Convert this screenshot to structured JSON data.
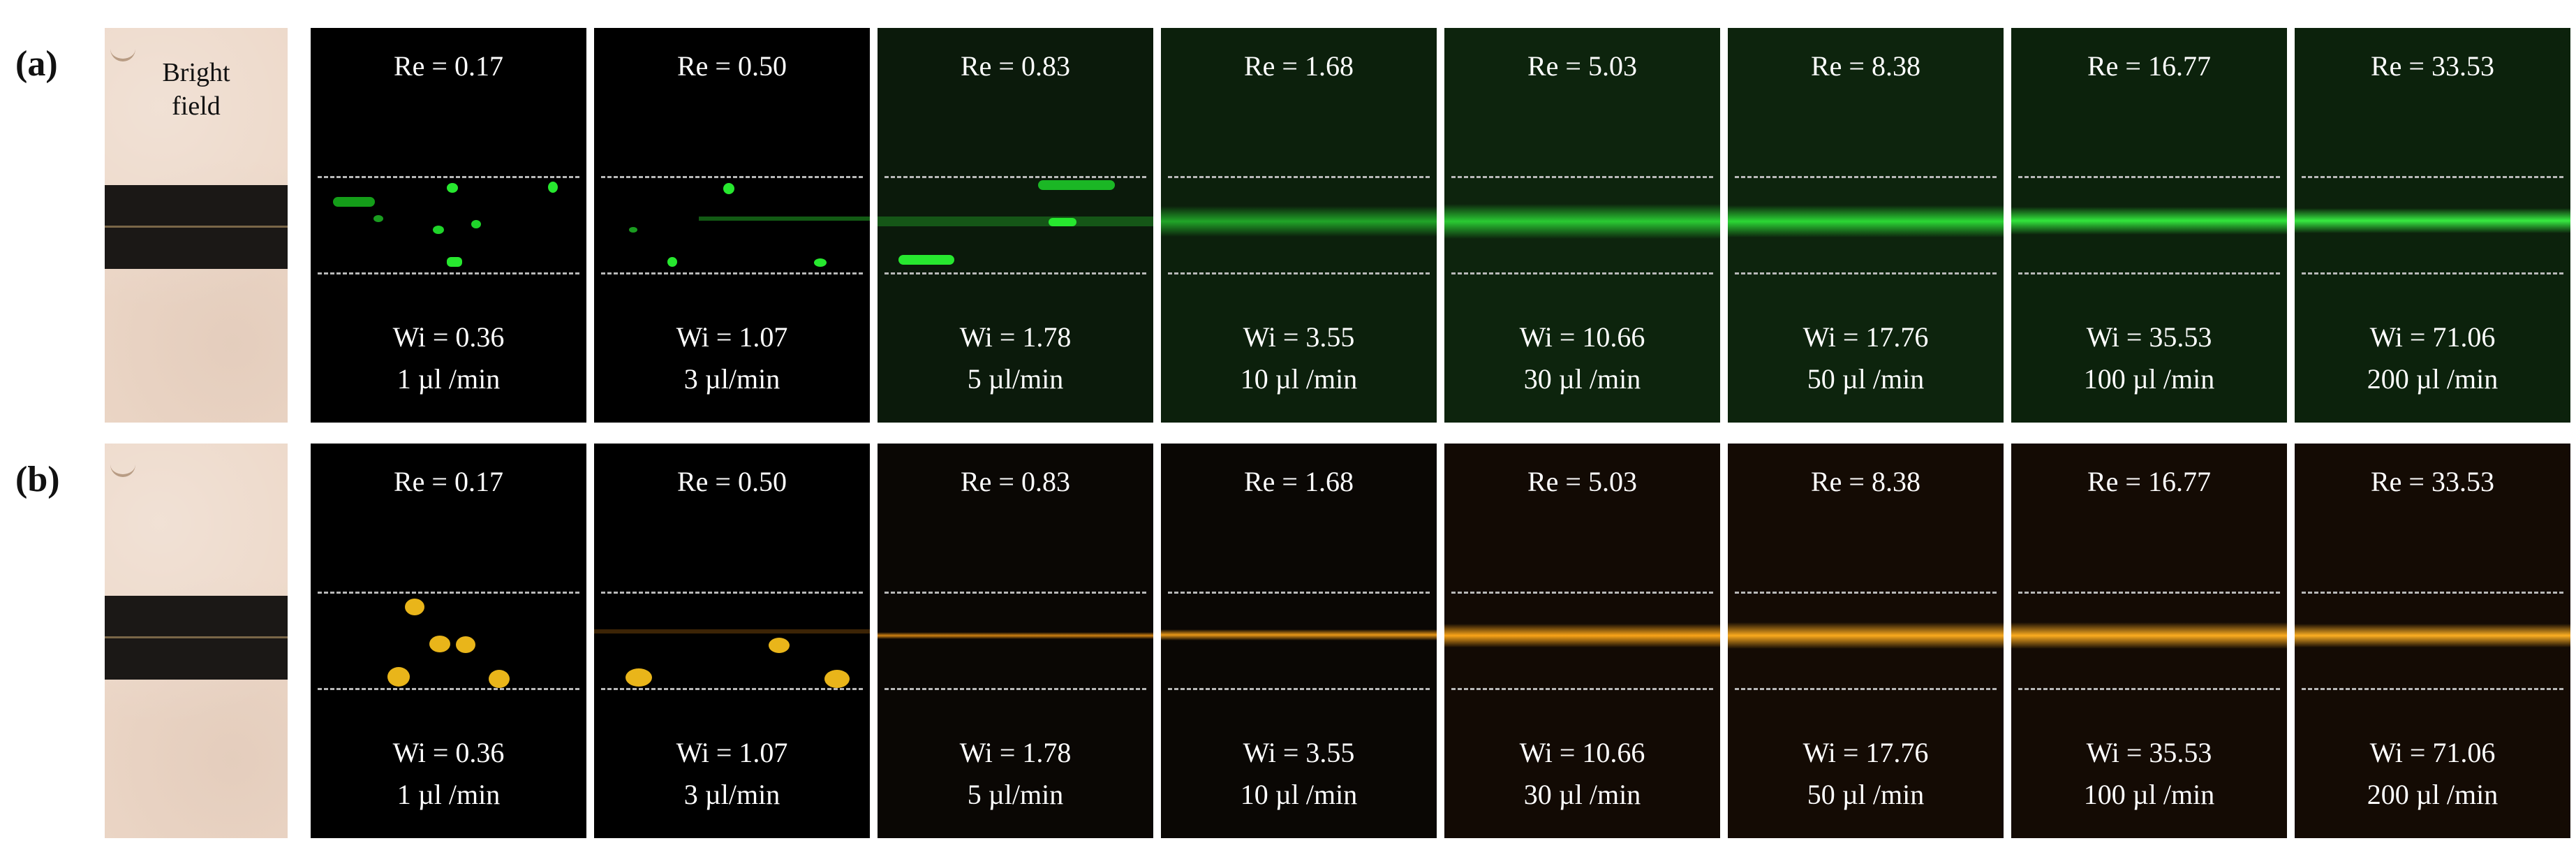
{
  "rows": [
    {
      "label": "(a)",
      "brightfield_label_line1": "Bright",
      "brightfield_label_line2": "field",
      "fluorescence_color": "#1fd42a",
      "panels": [
        {
          "re": "Re = 0.17",
          "wi": "Wi = 0.36",
          "flow": "1 µl /min"
        },
        {
          "re": "Re = 0.50",
          "wi": "Wi = 1.07",
          "flow": "3 µl/min"
        },
        {
          "re": "Re = 0.83",
          "wi": "Wi = 1.78",
          "flow": "5 µl/min"
        },
        {
          "re": "Re = 1.68",
          "wi": "Wi = 3.55",
          "flow": "10 µl /min"
        },
        {
          "re": "Re = 5.03",
          "wi": "Wi = 10.66",
          "flow": "30 µl /min"
        },
        {
          "re": "Re = 8.38",
          "wi": "Wi = 17.76",
          "flow": "50 µl /min"
        },
        {
          "re": "Re = 16.77",
          "wi": "Wi = 35.53",
          "flow": "100 µl /min"
        },
        {
          "re": "Re = 33.53",
          "wi": "Wi = 71.06",
          "flow": "200 µl /min"
        }
      ]
    },
    {
      "label": "(b)",
      "fluorescence_color": "#f0a015",
      "panels": [
        {
          "re": "Re = 0.17",
          "wi": "Wi = 0.36",
          "flow": "1 µl /min"
        },
        {
          "re": "Re = 0.50",
          "wi": "Wi = 1.07",
          "flow": "3 µl/min"
        },
        {
          "re": "Re = 0.83",
          "wi": "Wi = 1.78",
          "flow": "5 µl/min"
        },
        {
          "re": "Re = 1.68",
          "wi": "Wi = 3.55",
          "flow": "10 µl /min"
        },
        {
          "re": "Re = 5.03",
          "wi": "Wi = 10.66",
          "flow": "30 µl /min"
        },
        {
          "re": "Re = 8.38",
          "wi": "Wi = 17.76",
          "flow": "50 µl /min"
        },
        {
          "re": "Re = 16.77",
          "wi": "Wi = 35.53",
          "flow": "100 µl /min"
        },
        {
          "re": "Re = 33.53",
          "wi": "Wi = 71.06",
          "flow": "200 µl /min"
        }
      ]
    }
  ]
}
